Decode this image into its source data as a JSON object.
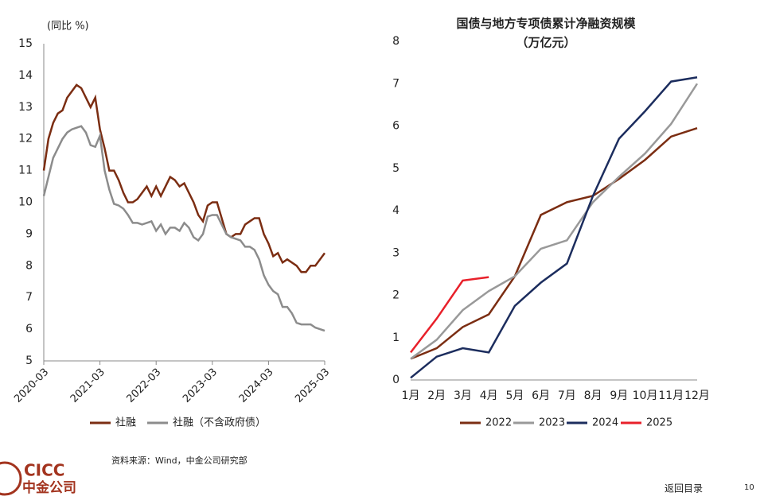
{
  "chart_data": [
    {
      "type": "line",
      "ylabel": "(同比 %)",
      "categories": [
        "2020-03",
        null,
        null,
        null,
        null,
        null,
        null,
        null,
        null,
        null,
        null,
        null,
        "2021-03",
        null,
        null,
        null,
        null,
        null,
        null,
        null,
        null,
        null,
        null,
        null,
        "2022-03",
        null,
        null,
        null,
        null,
        null,
        null,
        null,
        null,
        null,
        null,
        null,
        "2023-03",
        null,
        null,
        null,
        null,
        null,
        null,
        null,
        null,
        null,
        null,
        null,
        "2024-03",
        null,
        null,
        null,
        null,
        null,
        null,
        null,
        null,
        null,
        null,
        null,
        "2025-03"
      ],
      "series": [
        {
          "name": "社融",
          "color": "#7b2d12",
          "values": [
            11.0,
            12.0,
            12.5,
            12.8,
            12.9,
            13.3,
            13.5,
            13.7,
            13.6,
            13.3,
            13.0,
            13.3,
            12.3,
            11.7,
            11.0,
            11.0,
            10.7,
            10.3,
            10.0,
            10.0,
            10.1,
            10.3,
            10.5,
            10.2,
            10.5,
            10.2,
            10.5,
            10.8,
            10.7,
            10.5,
            10.6,
            10.3,
            10.0,
            9.6,
            9.4,
            9.9,
            10.0,
            10.0,
            9.5,
            9.0,
            8.9,
            9.0,
            9.0,
            9.3,
            9.4,
            9.5,
            9.5,
            9.0,
            8.7,
            8.3,
            8.4,
            8.1,
            8.2,
            8.1,
            8.0,
            7.8,
            7.8,
            8.0,
            8.0,
            8.2,
            8.4
          ]
        },
        {
          "name": "社融（不含政府债）",
          "color": "#8c8c8c",
          "values": [
            10.2,
            10.8,
            11.4,
            11.7,
            12.0,
            12.2,
            12.3,
            12.35,
            12.4,
            12.2,
            11.8,
            11.75,
            12.1,
            11.0,
            10.4,
            9.95,
            9.9,
            9.8,
            9.6,
            9.35,
            9.35,
            9.3,
            9.35,
            9.4,
            9.1,
            9.3,
            9.0,
            9.2,
            9.2,
            9.1,
            9.35,
            9.2,
            8.9,
            8.8,
            9.0,
            9.55,
            9.6,
            9.6,
            9.3,
            9.0,
            8.9,
            8.85,
            8.8,
            8.6,
            8.6,
            8.5,
            8.2,
            7.7,
            7.4,
            7.2,
            7.1,
            6.7,
            6.7,
            6.5,
            6.2,
            6.15,
            6.15,
            6.15,
            6.05,
            6.0,
            5.95
          ]
        }
      ],
      "ylim": [
        5,
        15
      ],
      "yticks": [
        5,
        6,
        7,
        8,
        9,
        10,
        11,
        12,
        13,
        14,
        15
      ]
    },
    {
      "type": "line",
      "title": "国债与地方专项债累计净融资规模",
      "subtitle": "（万亿元）",
      "categories": [
        "1月",
        "2月",
        "3月",
        "4月",
        "5月",
        "6月",
        "7月",
        "8月",
        "9月",
        "10月",
        "11月",
        "12月"
      ],
      "series": [
        {
          "name": "2022",
          "color": "#7b2d12",
          "values": [
            0.5,
            0.75,
            1.25,
            1.55,
            2.45,
            3.9,
            4.2,
            4.35,
            4.75,
            5.2,
            5.75,
            5.95
          ]
        },
        {
          "name": "2023",
          "color": "#999999",
          "values": [
            0.5,
            0.95,
            1.65,
            2.1,
            2.45,
            3.1,
            3.3,
            4.2,
            4.8,
            5.35,
            6.05,
            7.0
          ]
        },
        {
          "name": "2024",
          "color": "#1c2d5e",
          "values": [
            0.05,
            0.55,
            0.75,
            0.65,
            1.75,
            2.3,
            2.75,
            4.35,
            5.7,
            6.35,
            7.05,
            7.15
          ]
        },
        {
          "name": "2025",
          "color": "#e8202a",
          "values": [
            0.65,
            1.45,
            2.35,
            2.43,
            null,
            null,
            null,
            null,
            null,
            null,
            null,
            null
          ]
        }
      ],
      "ylim": [
        0,
        8
      ],
      "yticks": [
        0,
        1,
        2,
        3,
        4,
        5,
        6,
        7,
        8
      ]
    }
  ],
  "source": "资料来源：Wind，中金公司研究部",
  "logo": {
    "en": "CICC",
    "cn": "中金公司"
  },
  "nav": "返回目录",
  "page_number": "10"
}
